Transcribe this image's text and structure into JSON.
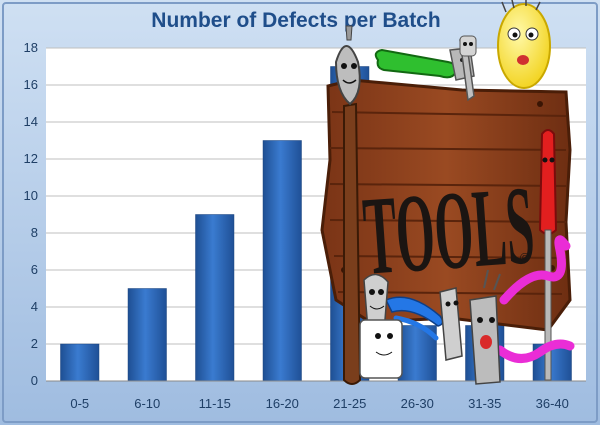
{
  "chart_data": {
    "type": "bar",
    "title": "Number of Defects per Batch",
    "categories": [
      "0-5",
      "6-10",
      "11-15",
      "16-20",
      "21-25",
      "26-30",
      "31-35",
      "36-40"
    ],
    "values": [
      2,
      5,
      9,
      13,
      17,
      3,
      3,
      2
    ],
    "ylim": [
      0,
      18
    ],
    "yticks": [
      0,
      2,
      4,
      6,
      8,
      10,
      12,
      14,
      16,
      18
    ],
    "grid": true,
    "legend": "none",
    "bar_color": "#2f6bb8"
  },
  "overlay": {
    "sign_text": "TOOLS",
    "trademark": "©"
  }
}
